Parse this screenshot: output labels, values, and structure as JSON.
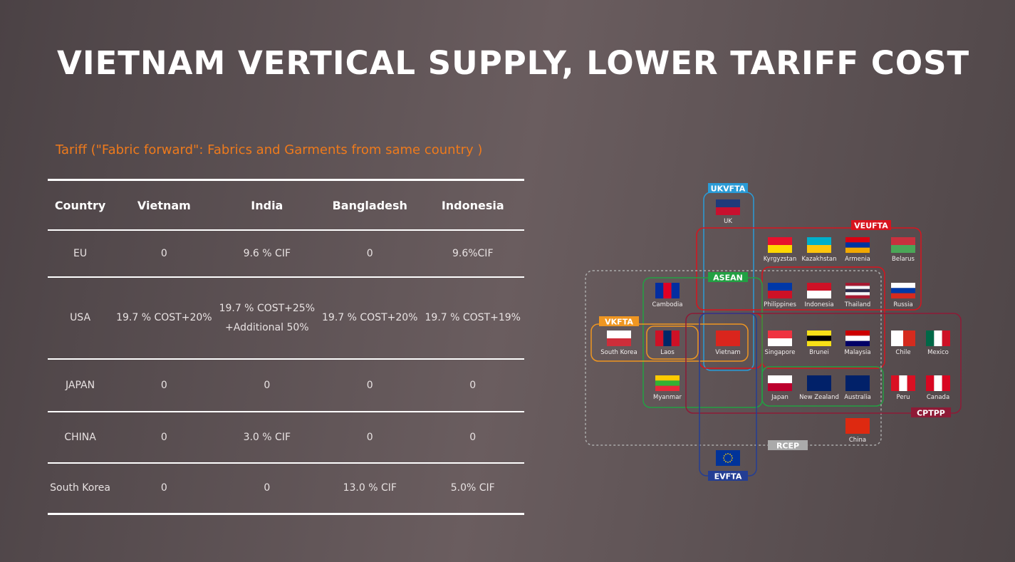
{
  "header": {
    "title": "VIETNAM VERTICAL SUPPLY, LOWER TARIFF COST",
    "subtitle": "Tariff (\"Fabric forward\": Fabrics and Garments from same country )"
  },
  "table": {
    "columns": [
      "Country",
      "Vietnam",
      "India",
      "Bangladesh",
      "Indonesia"
    ],
    "rows": [
      [
        "EU",
        "0",
        "9.6 % CIF",
        "0",
        "9.6%CIF"
      ],
      [
        "USA",
        "19.7 % COST+20%",
        "19.7 % COST+25%\n+Additional 50%",
        "19.7 % COST+20%",
        "19.7 % COST+19%"
      ],
      [
        "JAPAN",
        "0",
        "0",
        "0",
        "0"
      ],
      [
        "CHINA",
        "0",
        "3.0 % CIF",
        "0",
        "0"
      ],
      [
        "South Korea",
        "0",
        "0",
        "13.0 % CIF",
        "5.0% CIF"
      ]
    ]
  },
  "diagram": {
    "agreements": [
      "UKVFTA",
      "VEUFTA",
      "ASEAN",
      "VKFTA",
      "RCEP",
      "CPTPP",
      "EVFTA"
    ],
    "countries": [
      "UK",
      "Kyrgyzstan",
      "Kazakhstan",
      "Armenia",
      "Belarus",
      "Cambodia",
      "Philippines",
      "Indonesia",
      "Thailand",
      "Russia",
      "South Korea",
      "Laos",
      "Vietnam",
      "Singapore",
      "Brunei",
      "Malaysia",
      "Chile",
      "Mexico",
      "Myanmar",
      "Japan",
      "New Zealand",
      "Australia",
      "Peru",
      "Canada",
      "China"
    ]
  }
}
